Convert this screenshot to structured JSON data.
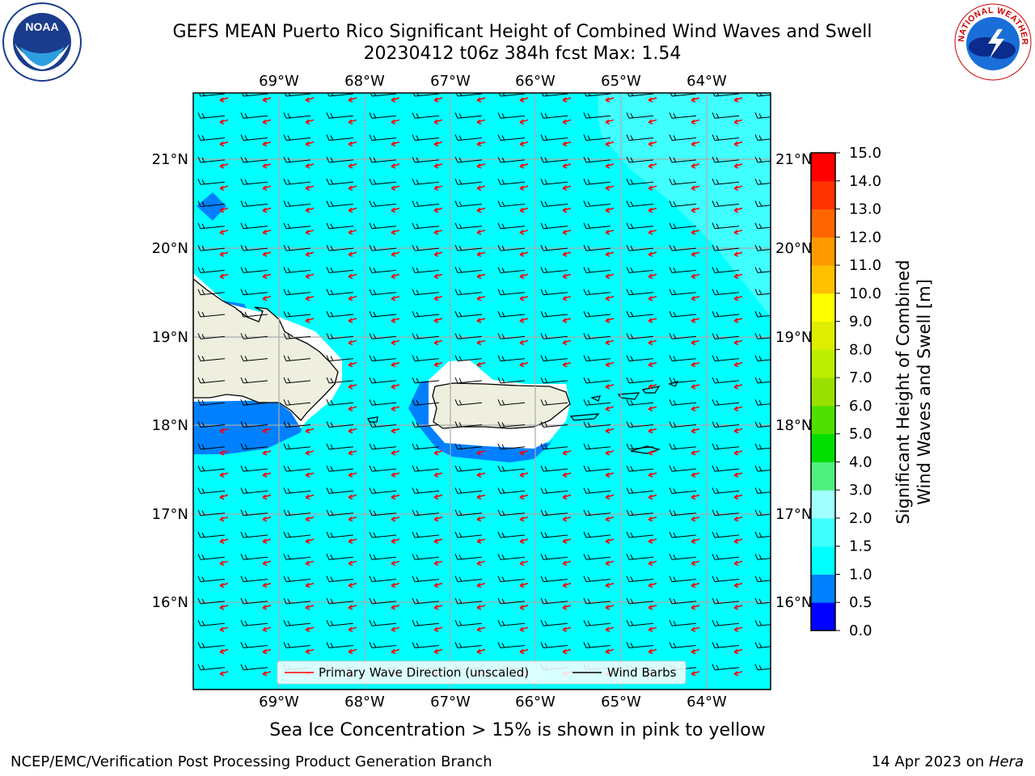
{
  "title": {
    "line1": "GEFS MEAN Puerto Rico Significant Height of Combined Wind Waves and Swell",
    "line2": "20230412 t06z 384h fcst   Max: 1.54"
  },
  "logos": {
    "left": {
      "name": "noaa-logo",
      "text": "NOAA"
    },
    "right": {
      "name": "nws-logo",
      "text": "NATIONAL WEATHER SERVICE"
    }
  },
  "map": {
    "lon_ticks": [
      "69°W",
      "68°W",
      "67°W",
      "66°W",
      "65°W",
      "64°W"
    ],
    "lat_ticks": [
      "21°N",
      "20°N",
      "19°N",
      "18°N",
      "17°N",
      "16°N"
    ],
    "lon_range": [
      -70,
      -63.25
    ],
    "lat_range": [
      15.05,
      21.75
    ],
    "ocean_color": "#00ffff",
    "land_color": "#efefdf",
    "arrow_color": "#ff0000",
    "legend": {
      "wave_direction": "Primary Wave Direction (unscaled)",
      "wind_barbs": "Wind Barbs"
    }
  },
  "colorbar": {
    "label_line1": "Significant Height of Combined",
    "label_line2": "Wind Waves and Swell [m]",
    "ticks": [
      "0.0",
      "0.5",
      "1.0",
      "1.5",
      "2.0",
      "3.0",
      "4.0",
      "5.0",
      "6.0",
      "7.0",
      "8.0",
      "9.0",
      "10.0",
      "11.0",
      "12.0",
      "13.0",
      "14.0",
      "15.0"
    ],
    "colors": [
      "#0000ff",
      "#0080ff",
      "#00ffff",
      "#40ffff",
      "#a0ffff",
      "#50f080",
      "#00dd00",
      "#50e000",
      "#99e000",
      "#bbee00",
      "#ddee00",
      "#ffff00",
      "#ffc000",
      "#ff9900",
      "#ff6600",
      "#ff3300",
      "#ff0000"
    ]
  },
  "note": "Sea Ice Concentration > 15% is shown in pink to yellow",
  "footer": {
    "left": "NCEP/EMC/Verification Post Processing Product Generation Branch",
    "right_prefix": "14 Apr 2023 on ",
    "right_host": "Hera"
  }
}
